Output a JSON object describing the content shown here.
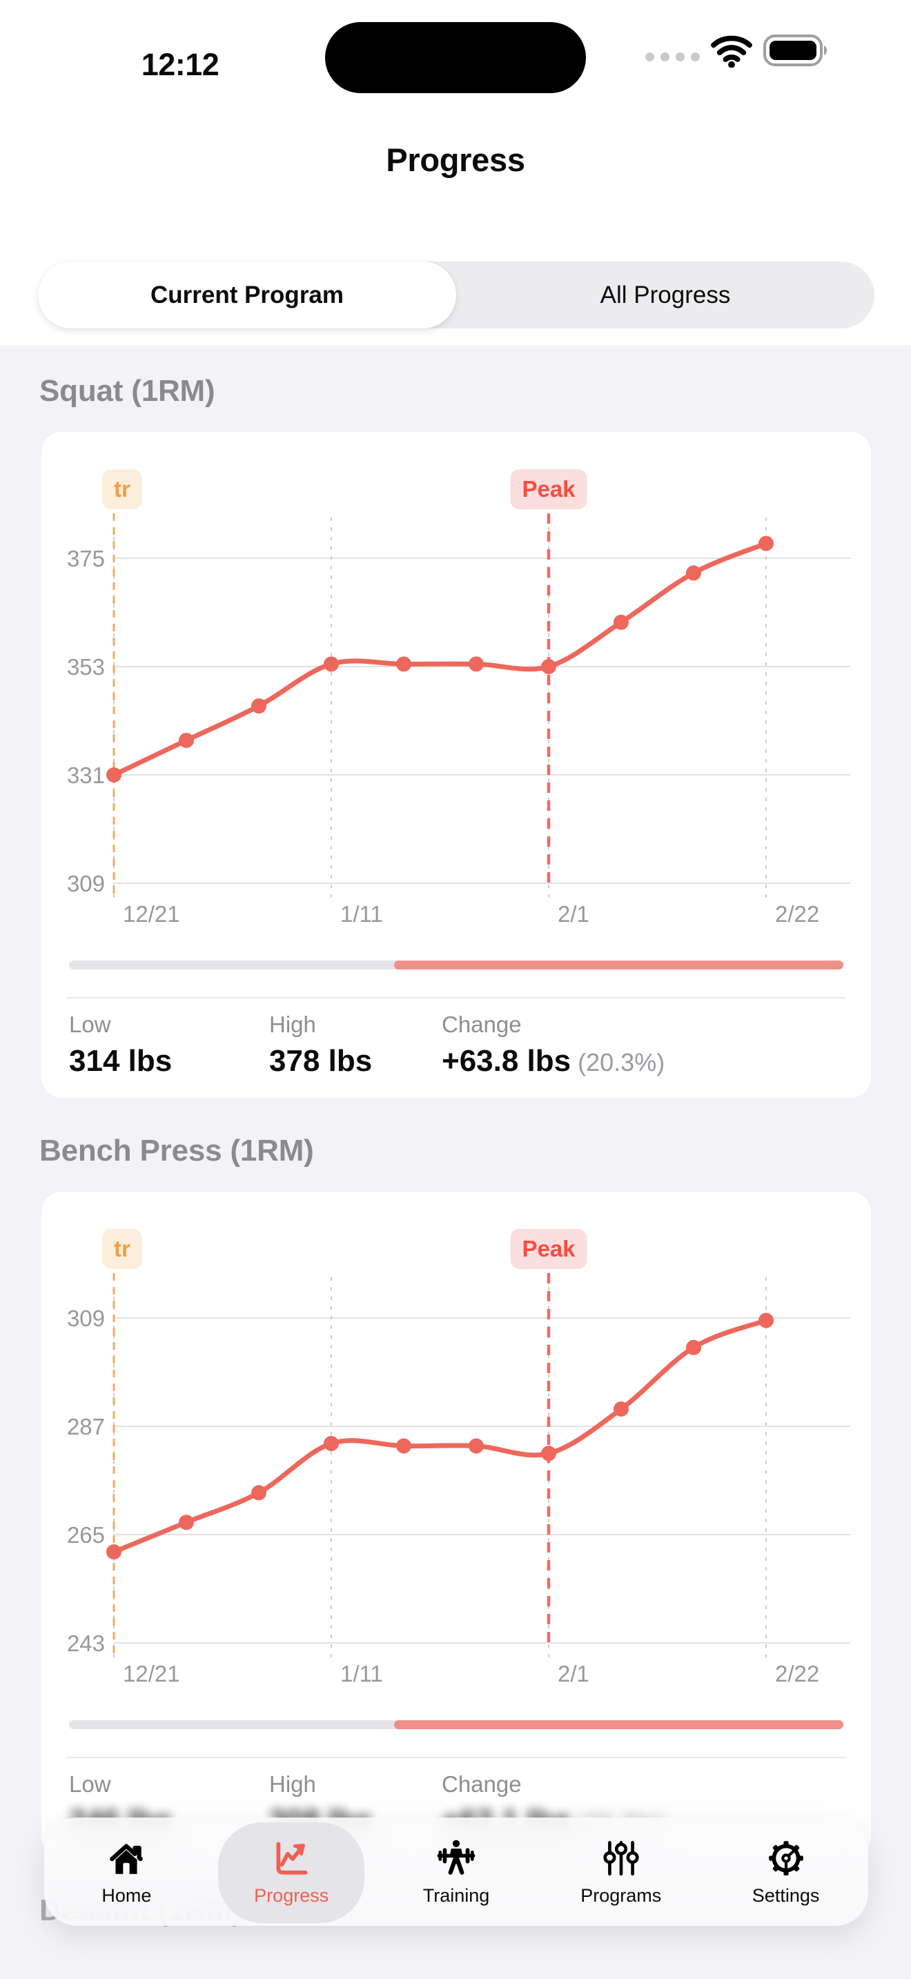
{
  "status_bar": {
    "time": "12:12"
  },
  "header": {
    "title": "Progress"
  },
  "segmented_control": {
    "options": [
      {
        "label": "Current Program",
        "selected": true
      },
      {
        "label": "All Progress",
        "selected": false
      }
    ]
  },
  "sections": [
    {
      "title": "Squat (1RM)"
    },
    {
      "title": "Bench Press (1RM)"
    },
    {
      "title": "Deadlift (1RM)"
    }
  ],
  "chart_data": [
    {
      "type": "line",
      "title": "Squat (1RM)",
      "unit": "lbs",
      "y_ticks": [
        375,
        353,
        331,
        309
      ],
      "x_ticks": [
        "12/21",
        "1/11",
        "2/1",
        "2/22"
      ],
      "x": [
        "12/21",
        "12/28",
        "1/4",
        "1/11",
        "1/18",
        "1/25",
        "2/1",
        "2/8",
        "2/15",
        "2/22"
      ],
      "values": [
        331,
        338,
        345,
        353.5,
        353.5,
        353.5,
        353,
        362,
        372,
        378
      ],
      "line_color": "#EE675C",
      "grid": true,
      "annotations": [
        {
          "label": "tr",
          "color": "orange",
          "at": "12/21"
        },
        {
          "label": "Peak",
          "color": "red",
          "at": "2/1"
        }
      ],
      "scroll_fill_percent": 58,
      "stats": {
        "low_label": "Low",
        "low": "314 lbs",
        "high_label": "High",
        "high": "378 lbs",
        "change_label": "Change",
        "change": "+63.8 lbs",
        "change_percent": "(20.3%)"
      }
    },
    {
      "type": "line",
      "title": "Bench Press (1RM)",
      "unit": "lbs",
      "y_ticks": [
        309,
        287,
        265,
        243
      ],
      "x_ticks": [
        "12/21",
        "1/11",
        "2/1",
        "2/22"
      ],
      "x": [
        "12/21",
        "12/28",
        "1/4",
        "1/11",
        "1/18",
        "1/25",
        "2/1",
        "2/8",
        "2/15",
        "2/22"
      ],
      "values": [
        261.5,
        267.5,
        273.5,
        283.5,
        283,
        283,
        281.5,
        290.5,
        303,
        308.5
      ],
      "line_color": "#EE675C",
      "grid": true,
      "annotations": [
        {
          "label": "tr",
          "color": "orange",
          "at": "12/21"
        },
        {
          "label": "Peak",
          "color": "red",
          "at": "2/1"
        }
      ],
      "scroll_fill_percent": 58,
      "stats": {
        "low_label": "Low",
        "low": "246 lbs",
        "high_label": "High",
        "high": "308 lbs",
        "change_label": "Change",
        "change": "+62.1 lbs",
        "change_percent": "(25.3%)"
      }
    }
  ],
  "tab_bar": {
    "items": [
      {
        "label": "Home",
        "icon": "home-icon",
        "active": false
      },
      {
        "label": "Progress",
        "icon": "line-chart-icon",
        "active": true
      },
      {
        "label": "Training",
        "icon": "barbell-icon",
        "active": false
      },
      {
        "label": "Programs",
        "icon": "sliders-icon",
        "active": false
      },
      {
        "label": "Settings",
        "icon": "gear-icon",
        "active": false
      }
    ]
  },
  "colors": {
    "accent_line": "#EE675C",
    "accent_tab": "#F25E53",
    "orange_marker": "#F5A95F",
    "red_marker": "#F8685D",
    "page_bg": "#F2F2F7",
    "card_bg": "#FFFFFF",
    "tick_text": "#97979D"
  }
}
